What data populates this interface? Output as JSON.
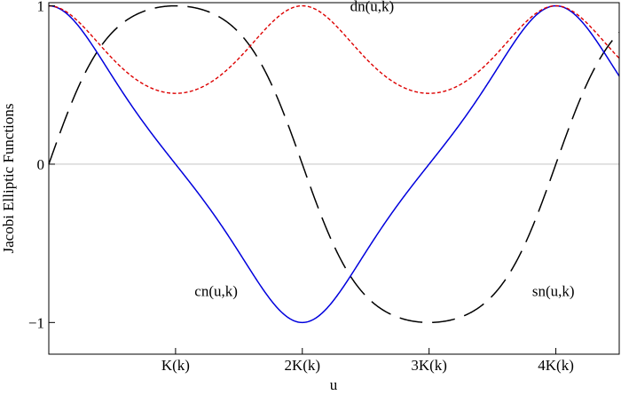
{
  "chart_data": {
    "type": "line",
    "title": "",
    "xlabel": "u",
    "ylabel": "Jacobi Elliptic Functions",
    "xlim": [
      0,
      4.5
    ],
    "ylim": [
      -1.2,
      1.02
    ],
    "x_unit": "K(k)",
    "x_ticks": [
      1,
      2,
      3,
      4
    ],
    "x_tick_labels": [
      "K(k)",
      "2K(k)",
      "3K(k)",
      "4K(k)"
    ],
    "y_ticks": [
      -1,
      0,
      1
    ],
    "y_tick_labels": [
      "−1",
      "0",
      "1"
    ],
    "grid": false,
    "modulus_k_squared": 0.8,
    "series": [
      {
        "name": "sn(u,k)",
        "function": "sn",
        "color": "#000000",
        "dash": "long-dash"
      },
      {
        "name": "cn(u,k)",
        "function": "cn",
        "color": "#0000dd",
        "dash": "solid"
      },
      {
        "name": "dn(u,k)",
        "function": "dn",
        "color": "#dd0000",
        "dash": "short-dash"
      }
    ],
    "annotations": [
      {
        "text": "dn(u,k)",
        "x": 2.55,
        "y": 1.0
      },
      {
        "text": "cn(u,k)",
        "x": 1.32,
        "y": -0.8
      },
      {
        "text": "sn(u,k)",
        "x": 3.98,
        "y": -0.8
      }
    ]
  }
}
